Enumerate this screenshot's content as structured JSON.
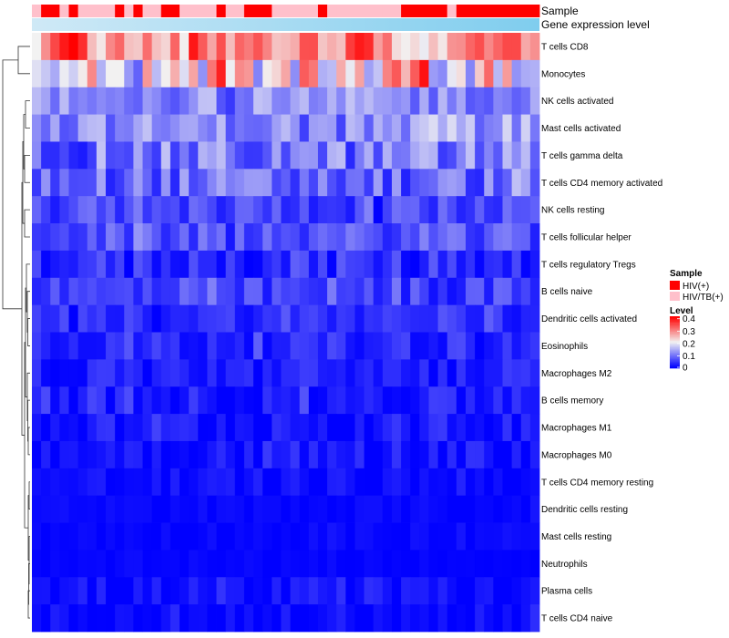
{
  "chart_data": {
    "type": "heatmap",
    "title": "",
    "n_columns": 55,
    "rows": [
      "T cells CD8",
      "Monocytes",
      "NK cells activated",
      "Mast cells activated",
      "T cells gamma delta",
      "T cells CD4 memory activated",
      "NK cells resting",
      "T cells follicular helper",
      "T cells regulatory  Tregs",
      "B cells naive",
      "Dendritic cells activated",
      "Eosinophils",
      "Macrophages M2",
      "B cells memory",
      "Macrophages M1",
      "Macrophages M0",
      "T cells CD4 memory resting",
      "Dendritic cells resting",
      "Mast cells resting",
      "Neutrophils",
      "Plasma cells",
      "T cells CD4 naive"
    ],
    "row_means": [
      0.31,
      0.23,
      0.12,
      0.12,
      0.1,
      0.09,
      0.06,
      0.07,
      0.04,
      0.05,
      0.04,
      0.035,
      0.025,
      0.025,
      0.02,
      0.02,
      0.01,
      0.005,
      0.005,
      0.003,
      0.01,
      0.008
    ],
    "row_spread": [
      0.1,
      0.12,
      0.05,
      0.05,
      0.07,
      0.06,
      0.04,
      0.04,
      0.04,
      0.04,
      0.03,
      0.03,
      0.03,
      0.03,
      0.03,
      0.03,
      0.02,
      0.01,
      0.01,
      0.005,
      0.025,
      0.02
    ],
    "column_annotations": [
      {
        "name": "Sample",
        "values": [
          "HIV/TB(+)",
          "HIV(+)",
          "HIV(+)",
          "HIV/TB(+)",
          "HIV(+)",
          "HIV/TB(+)",
          "HIV/TB(+)",
          "HIV/TB(+)",
          "HIV/TB(+)",
          "HIV(+)",
          "HIV/TB(+)",
          "HIV(+)",
          "HIV/TB(+)",
          "HIV/TB(+)",
          "HIV(+)",
          "HIV(+)",
          "HIV/TB(+)",
          "HIV/TB(+)",
          "HIV/TB(+)",
          "HIV/TB(+)",
          "HIV(+)",
          "HIV/TB(+)",
          "HIV/TB(+)",
          "HIV(+)",
          "HIV(+)",
          "HIV(+)",
          "HIV/TB(+)",
          "HIV/TB(+)",
          "HIV/TB(+)",
          "HIV/TB(+)",
          "HIV/TB(+)",
          "HIV(+)",
          "HIV/TB(+)",
          "HIV/TB(+)",
          "HIV/TB(+)",
          "HIV/TB(+)",
          "HIV/TB(+)",
          "HIV/TB(+)",
          "HIV/TB(+)",
          "HIV/TB(+)",
          "HIV(+)",
          "HIV(+)",
          "HIV(+)",
          "HIV(+)",
          "HIV(+)",
          "HIV/TB(+)",
          "HIV(+)",
          "HIV(+)",
          "HIV(+)",
          "HIV(+)",
          "HIV(+)",
          "HIV(+)",
          "HIV(+)",
          "HIV(+)",
          "HIV(+)"
        ]
      },
      {
        "name": "Gene expression level",
        "gradient": [
          "#cfe9f6",
          "#7fcdee"
        ]
      }
    ],
    "legend": {
      "sample_title": "Sample",
      "sample_items": [
        {
          "label": "HIV(+)",
          "color": "#ff0000"
        },
        {
          "label": "HIV/TB(+)",
          "color": "#ffc0cb"
        }
      ],
      "level_title": "Level",
      "level_ticks": [
        "0.4",
        "0.3",
        "0.2",
        "0.1",
        "0"
      ],
      "level_tick_values": [
        0.4,
        0.3,
        0.2,
        0.1,
        0
      ],
      "level_range": [
        0,
        0.42
      ],
      "placement": "right"
    },
    "colors": {
      "low": "#0000ff",
      "mid": "#f2f2f2",
      "high": "#ff0000",
      "midpoint": 0.21
    }
  }
}
